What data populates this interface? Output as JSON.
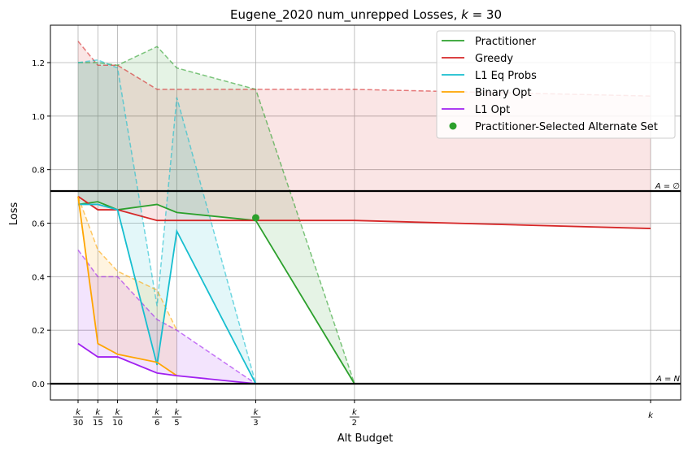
{
  "chart_data": {
    "type": "line",
    "title_prefix": "Eugene_2020 num_unrepped Losses, ",
    "title_k": "k",
    "title_suffix": " = 30",
    "xlabel": "Alt Budget",
    "ylabel": "Loss",
    "xlim": [
      0.0,
      1.0
    ],
    "ylim": [
      -0.06,
      1.34
    ],
    "grid": true,
    "legend_position": "top-right",
    "x_ticks": [
      {
        "value": 0.0333,
        "num": "k",
        "den": "30"
      },
      {
        "value": 0.0667,
        "num": "k",
        "den": "15"
      },
      {
        "value": 0.1,
        "num": "k",
        "den": "10"
      },
      {
        "value": 0.1667,
        "num": "k",
        "den": "6"
      },
      {
        "value": 0.2,
        "num": "k",
        "den": "5"
      },
      {
        "value": 0.3333,
        "num": "k",
        "den": "3"
      },
      {
        "value": 0.5,
        "num": "k",
        "den": "2"
      },
      {
        "value": 1.0,
        "num": "k",
        "den": ""
      }
    ],
    "y_ticks": [
      0.0,
      0.2,
      0.4,
      0.6,
      0.8,
      1.0,
      1.2
    ],
    "y_tick_labels": [
      "0.0",
      "0.2",
      "0.4",
      "0.6",
      "0.8",
      "1.0",
      "1.2"
    ],
    "hlines": [
      {
        "y": 0.72,
        "label": "A = ∅"
      },
      {
        "y": 0.0,
        "label": "A = N"
      }
    ],
    "series": [
      {
        "name": "Practitioner",
        "color": "#2ca02c",
        "x": [
          0.0333,
          0.0667,
          0.1,
          0.1667,
          0.2,
          0.3333,
          0.5
        ],
        "y": [
          0.67,
          0.68,
          0.65,
          0.67,
          0.64,
          0.61,
          0.0
        ],
        "upper_x": [
          0.0333,
          0.0667,
          0.1,
          0.1667,
          0.2,
          0.3333,
          0.5
        ],
        "upper_y": [
          1.2,
          1.2,
          1.19,
          1.26,
          1.18,
          1.1,
          0.0
        ]
      },
      {
        "name": "Greedy",
        "color": "#d62728",
        "x": [
          0.0333,
          0.0667,
          0.1,
          0.1667,
          0.2,
          0.3333,
          0.5,
          1.0
        ],
        "y": [
          0.7,
          0.65,
          0.65,
          0.61,
          0.61,
          0.61,
          0.61,
          0.58
        ],
        "upper_x": [
          0.0333,
          0.0667,
          0.1,
          0.1667,
          0.2,
          0.3333,
          0.5,
          1.0
        ],
        "upper_y": [
          1.28,
          1.19,
          1.19,
          1.1,
          1.1,
          1.1,
          1.1,
          1.075
        ]
      },
      {
        "name": "L1 Eq Probs",
        "color": "#17becf",
        "x": [
          0.0333,
          0.0667,
          0.1,
          0.1667,
          0.2,
          0.3333
        ],
        "y": [
          0.67,
          0.67,
          0.65,
          0.07,
          0.57,
          0.0
        ],
        "upper_x": [
          0.0333,
          0.0667,
          0.1,
          0.1667,
          0.2,
          0.3333
        ],
        "upper_y": [
          1.2,
          1.21,
          1.18,
          0.29,
          1.07,
          0.0
        ]
      },
      {
        "name": "Binary Opt",
        "color": "#ffa500",
        "x": [
          0.0333,
          0.0667,
          0.1,
          0.1667,
          0.2
        ],
        "y": [
          0.7,
          0.15,
          0.11,
          0.08,
          0.03
        ],
        "upper_x": [
          0.0333,
          0.0667,
          0.1,
          0.1667,
          0.2
        ],
        "upper_y": [
          0.7,
          0.5,
          0.42,
          0.35,
          0.2
        ]
      },
      {
        "name": "L1 Opt",
        "color": "#a020f0",
        "x": [
          0.0333,
          0.0667,
          0.1,
          0.1667,
          0.2,
          0.3333
        ],
        "y": [
          0.15,
          0.1,
          0.1,
          0.04,
          0.03,
          0.0
        ],
        "upper_x": [
          0.0333,
          0.0667,
          0.1,
          0.1667,
          0.2,
          0.3333
        ],
        "upper_y": [
          0.5,
          0.4,
          0.4,
          0.24,
          0.2,
          0.0
        ]
      }
    ],
    "scatter": {
      "name": "Practitioner-Selected Alternate Set",
      "color": "#2ca02c",
      "x": 0.3333,
      "y": 0.62
    },
    "legend_order": [
      "Practitioner",
      "Greedy",
      "L1 Eq Probs",
      "Binary Opt",
      "L1 Opt",
      "Practitioner-Selected Alternate Set"
    ]
  }
}
